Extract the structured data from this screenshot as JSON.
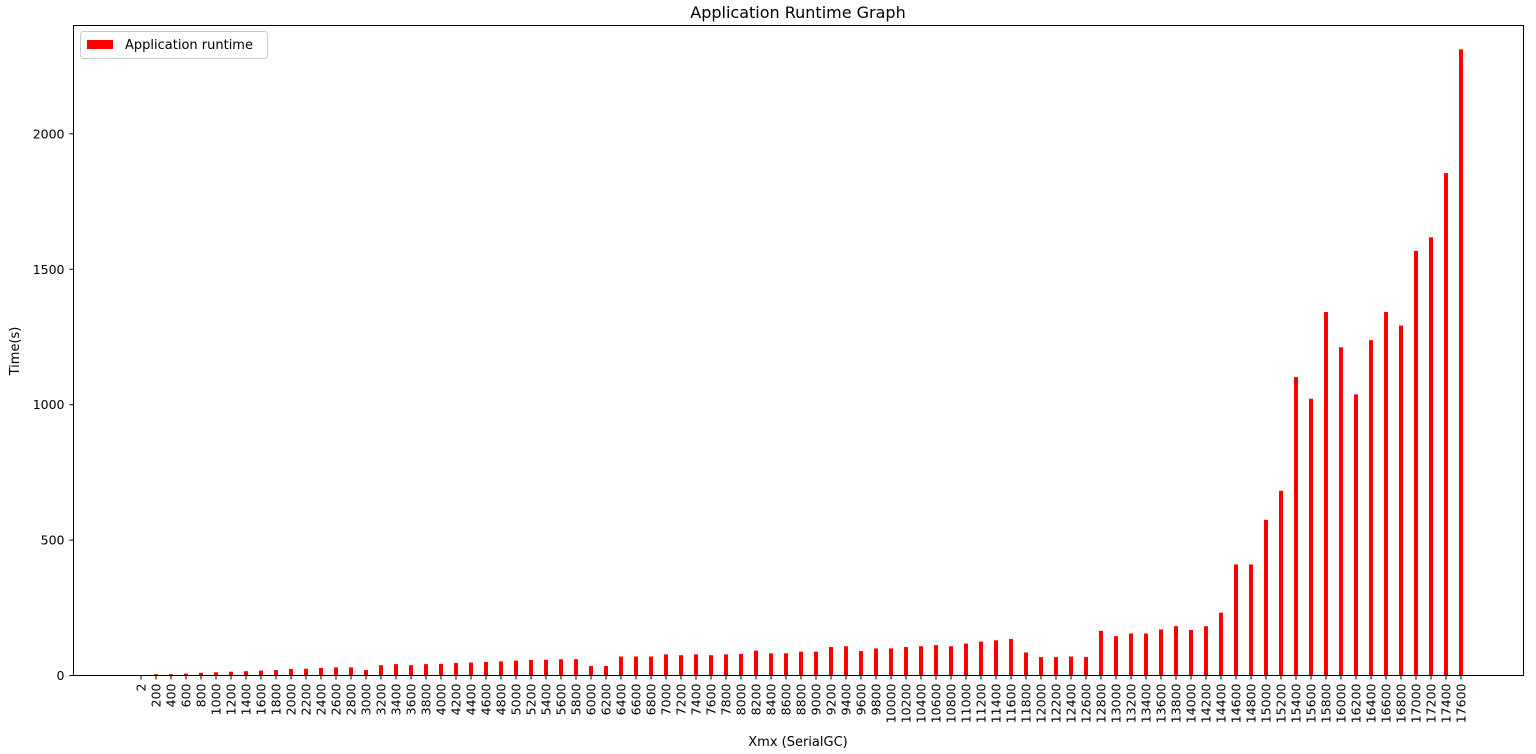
{
  "chart_data": {
    "type": "bar",
    "title": "Application Runtime Graph",
    "xlabel": "Xmx (SerialGC)",
    "ylabel": "Time(s)",
    "ylim": [
      0,
      2400
    ],
    "yticks": [
      0,
      500,
      1000,
      1500,
      2000
    ],
    "grid": false,
    "legend": "top-left",
    "bar_color": "#ff0000",
    "categories": [
      "2",
      "200",
      "400",
      "600",
      "800",
      "1000",
      "1200",
      "1400",
      "1600",
      "1800",
      "2000",
      "2200",
      "2400",
      "2600",
      "2800",
      "3000",
      "3200",
      "3400",
      "3600",
      "3800",
      "4000",
      "4200",
      "4400",
      "4600",
      "4800",
      "5000",
      "5200",
      "5400",
      "5600",
      "5800",
      "6000",
      "6200",
      "6400",
      "6600",
      "6800",
      "7000",
      "7200",
      "7400",
      "7600",
      "7800",
      "8000",
      "8200",
      "8400",
      "8600",
      "8800",
      "9000",
      "9200",
      "9400",
      "9600",
      "9800",
      "10000",
      "10200",
      "10400",
      "10600",
      "10800",
      "11000",
      "11200",
      "11400",
      "11600",
      "11800",
      "12000",
      "12200",
      "12400",
      "12600",
      "12800",
      "13000",
      "13200",
      "13400",
      "13600",
      "13800",
      "14000",
      "14200",
      "14400",
      "14600",
      "14800",
      "15000",
      "15200",
      "15400",
      "15600",
      "15800",
      "16000",
      "16200",
      "16400",
      "16600",
      "16800",
      "17000",
      "17200",
      "17400",
      "17600"
    ],
    "series": [
      {
        "name": "Application runtime",
        "values": [
          0,
          5,
          5,
          7,
          10,
          12,
          14,
          16,
          18,
          20,
          24,
          25,
          28,
          30,
          30,
          20,
          38,
          42,
          38,
          42,
          43,
          46,
          48,
          50,
          52,
          55,
          57,
          58,
          60,
          60,
          35,
          35,
          70,
          70,
          70,
          78,
          75,
          78,
          75,
          78,
          80,
          92,
          82,
          82,
          88,
          88,
          105,
          108,
          90,
          100,
          100,
          105,
          108,
          112,
          108,
          118,
          125,
          130,
          135,
          85,
          68,
          68,
          70,
          68,
          165,
          145,
          155,
          155,
          170,
          182,
          168,
          182,
          232,
          410,
          410,
          575,
          682,
          1102,
          1022,
          1342,
          1212,
          1038,
          1238,
          1342,
          1292,
          1568,
          1618,
          1855,
          2312
        ]
      }
    ]
  }
}
